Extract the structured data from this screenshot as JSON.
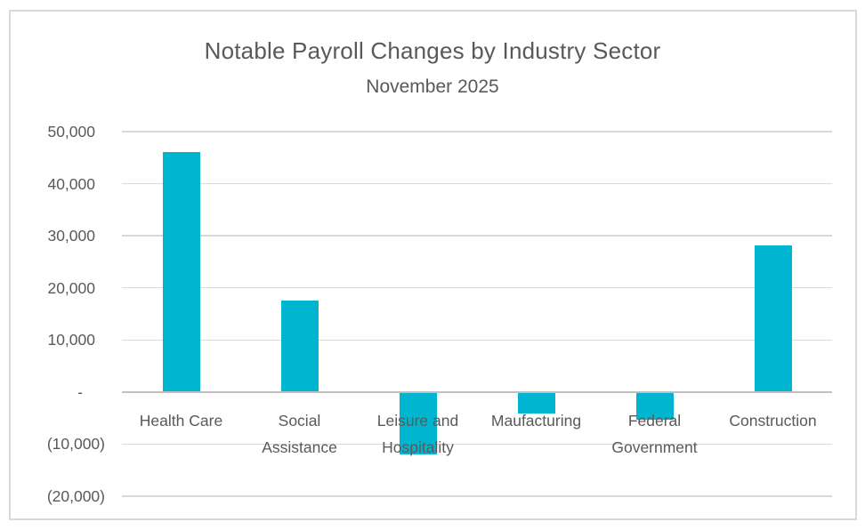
{
  "window": {
    "background": "#FFFFFF",
    "frame_border_color": "#D9D9D9"
  },
  "chart_data": {
    "type": "bar",
    "title": "Notable Payroll Changes by Industry Sector",
    "subtitle": "November 2025",
    "categories": [
      "Health Care",
      "Social Assistance",
      "Leisure and Hospitality",
      "Maufacturing",
      "Federal Government",
      "Construction"
    ],
    "category_label_lines": [
      [
        "Health Care"
      ],
      [
        "Social",
        "Assistance"
      ],
      [
        "Leisure and",
        "Hospitality"
      ],
      [
        "Maufacturing"
      ],
      [
        "Federal",
        "Government"
      ],
      [
        "Construction"
      ]
    ],
    "values": [
      46000,
      17600,
      -11900,
      -4200,
      -5400,
      28100
    ],
    "ylim": [
      -20000,
      50000
    ],
    "ytick_step": 10000,
    "yticks": [
      {
        "value": 50000,
        "label": "50,000"
      },
      {
        "value": 40000,
        "label": "40,000"
      },
      {
        "value": 30000,
        "label": "30,000"
      },
      {
        "value": 20000,
        "label": "20,000"
      },
      {
        "value": 10000,
        "label": "10,000"
      },
      {
        "value": 0,
        "label": "-"
      },
      {
        "value": -10000,
        "label": "(10,000)"
      },
      {
        "value": -20000,
        "label": "(20,000)"
      }
    ],
    "number_format": "accounting, negatives in parentheses",
    "grid": true,
    "legend": false,
    "bar_color": "#00B5CF",
    "text_color": "#595959",
    "gridline_color": "#D9D9D9",
    "axis_line_color": "#BFBFBF"
  }
}
